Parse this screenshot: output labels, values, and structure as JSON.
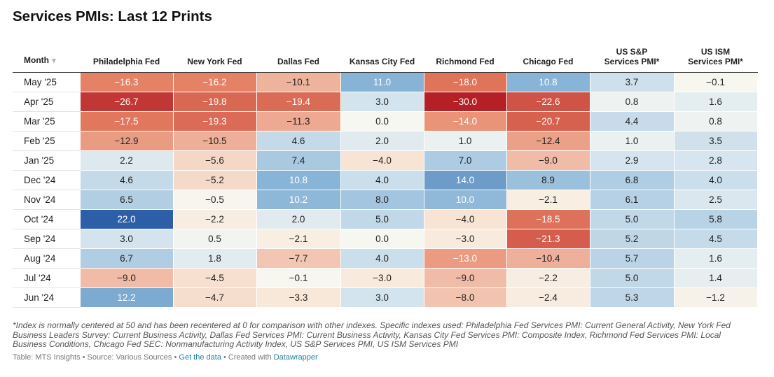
{
  "chart_data": {
    "type": "table",
    "title": "Services PMIs: Last 12 Prints",
    "month_header": "Month",
    "columns": [
      "Philadelphia Fed",
      "New York Fed",
      "Dallas Fed",
      "Kansas City Fed",
      "Richmond Fed",
      "Chicago Fed",
      "US S&P Services PMI*",
      "US ISM Services PMI*"
    ],
    "col_header_lines": [
      [
        "Philadelphia Fed"
      ],
      [
        "New York Fed"
      ],
      [
        "Dallas Fed"
      ],
      [
        "Kansas City Fed"
      ],
      [
        "Richmond Fed"
      ],
      [
        "Chicago Fed"
      ],
      [
        "US S&P",
        "Services PMI*"
      ],
      [
        "US ISM",
        "Services PMI*"
      ]
    ],
    "rows": [
      {
        "month": "May '25",
        "values": [
          "−16.3",
          "−16.2",
          "−10.1",
          "11.0",
          "−18.0",
          "10.8",
          "3.7",
          "−0.1"
        ]
      },
      {
        "month": "Apr '25",
        "values": [
          "−26.7",
          "−19.8",
          "−19.4",
          "3.0",
          "−30.0",
          "−22.6",
          "0.8",
          "1.6"
        ]
      },
      {
        "month": "Mar '25",
        "values": [
          "−17.5",
          "−19.3",
          "−11.3",
          "0.0",
          "−14.0",
          "−20.7",
          "4.4",
          "0.8"
        ]
      },
      {
        "month": "Feb '25",
        "values": [
          "−12.9",
          "−10.5",
          "4.6",
          "2.0",
          "1.0",
          "−12.4",
          "1.0",
          "3.5"
        ]
      },
      {
        "month": "Jan '25",
        "values": [
          "2.2",
          "−5.6",
          "7.4",
          "−4.0",
          "7.0",
          "−9.0",
          "2.9",
          "2.8"
        ]
      },
      {
        "month": "Dec '24",
        "values": [
          "4.6",
          "−5.2",
          "10.8",
          "4.0",
          "14.0",
          "8.9",
          "6.8",
          "4.0"
        ]
      },
      {
        "month": "Nov '24",
        "values": [
          "6.5",
          "−0.5",
          "10.2",
          "8.0",
          "10.0",
          "−2.1",
          "6.1",
          "2.5"
        ]
      },
      {
        "month": "Oct '24",
        "values": [
          "22.0",
          "−2.2",
          "2.0",
          "5.0",
          "−4.0",
          "−18.5",
          "5.0",
          "5.8"
        ]
      },
      {
        "month": "Sep '24",
        "values": [
          "3.0",
          "0.5",
          "−2.1",
          "0.0",
          "−3.0",
          "−21.3",
          "5.2",
          "4.5"
        ]
      },
      {
        "month": "Aug '24",
        "values": [
          "6.7",
          "1.8",
          "−7.7",
          "4.0",
          "−13.0",
          "−10.4",
          "5.7",
          "1.6"
        ]
      },
      {
        "month": "Jul '24",
        "values": [
          "−9.0",
          "−4.5",
          "−0.1",
          "−3.0",
          "−9.0",
          "−2.2",
          "5.0",
          "1.4"
        ]
      },
      {
        "month": "Jun '24",
        "values": [
          "12.2",
          "−4.7",
          "−3.3",
          "3.0",
          "−8.0",
          "−2.4",
          "5.3",
          "−1.2"
        ]
      }
    ],
    "color_scale": {
      "negative_strong": "#b42026",
      "negative_mid": "#e57f62",
      "negative_light": "#f8e7d8",
      "neutral": "#f7f7f1",
      "positive_light": "#d8e6ef",
      "positive_mid": "#86b3d6",
      "positive_strong": "#2d5fa8"
    }
  },
  "footnote": "*Index is normally centered at 50 and has been recentered at 0 for comparison with other indexes. Specific indexes used: Philadelphia Fed Services PMI: Current General Activity, New York Fed Business Leaders Survey: Current Business Activity, Dallas Fed Services PMI: Current Business Activity, Kansas City Fed Services PMI: Composite Index, Richmond Fed Services PMI: Local Business Conditions, Chicago Fed SEC: Nonmanufacturing Activity Index, US S&P Services PMI, US ISM Services PMI",
  "credit": {
    "prefix": "Table: MTS Insights • Source: Various Sources • ",
    "link": "Get the data",
    "middle": " • Created with ",
    "tool": "Datawrapper"
  }
}
